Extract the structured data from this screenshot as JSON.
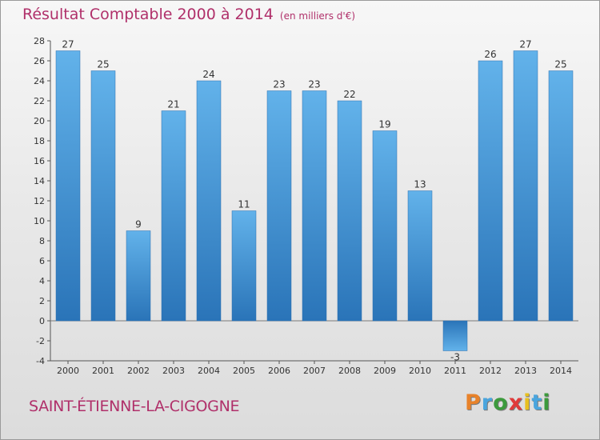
{
  "header": {
    "title": "Résultat Comptable 2000 à 2014",
    "subtitle": "(en milliers d'€)"
  },
  "commune_name": "SAINT-ÉTIENNE-LA-CIGOGNE",
  "logo": {
    "letters": [
      "P",
      "r",
      "o",
      "x",
      "i",
      "t",
      "i"
    ],
    "colors": [
      "#e8822a",
      "#4aa5de",
      "#3c9a3c",
      "#e03a3a",
      "#e8c020",
      "#4aa5de",
      "#3c9a3c"
    ]
  },
  "chart_data": {
    "type": "bar",
    "title": "Résultat Comptable 2000 à 2014",
    "subtitle": "(en milliers d'€)",
    "xlabel": "",
    "ylabel": "",
    "categories": [
      "2000",
      "2001",
      "2002",
      "2003",
      "2004",
      "2005",
      "2006",
      "2007",
      "2008",
      "2009",
      "2010",
      "2011",
      "2012",
      "2013",
      "2014"
    ],
    "values": [
      27,
      25,
      9,
      21,
      24,
      11,
      23,
      23,
      22,
      19,
      13,
      -3,
      26,
      27,
      25
    ],
    "ylim": [
      -4,
      28
    ],
    "yticks": [
      -4,
      -2,
      0,
      2,
      4,
      6,
      8,
      10,
      12,
      14,
      16,
      18,
      20,
      22,
      24,
      26,
      28
    ],
    "grid": false,
    "bar_color": "#3d8fd3"
  }
}
